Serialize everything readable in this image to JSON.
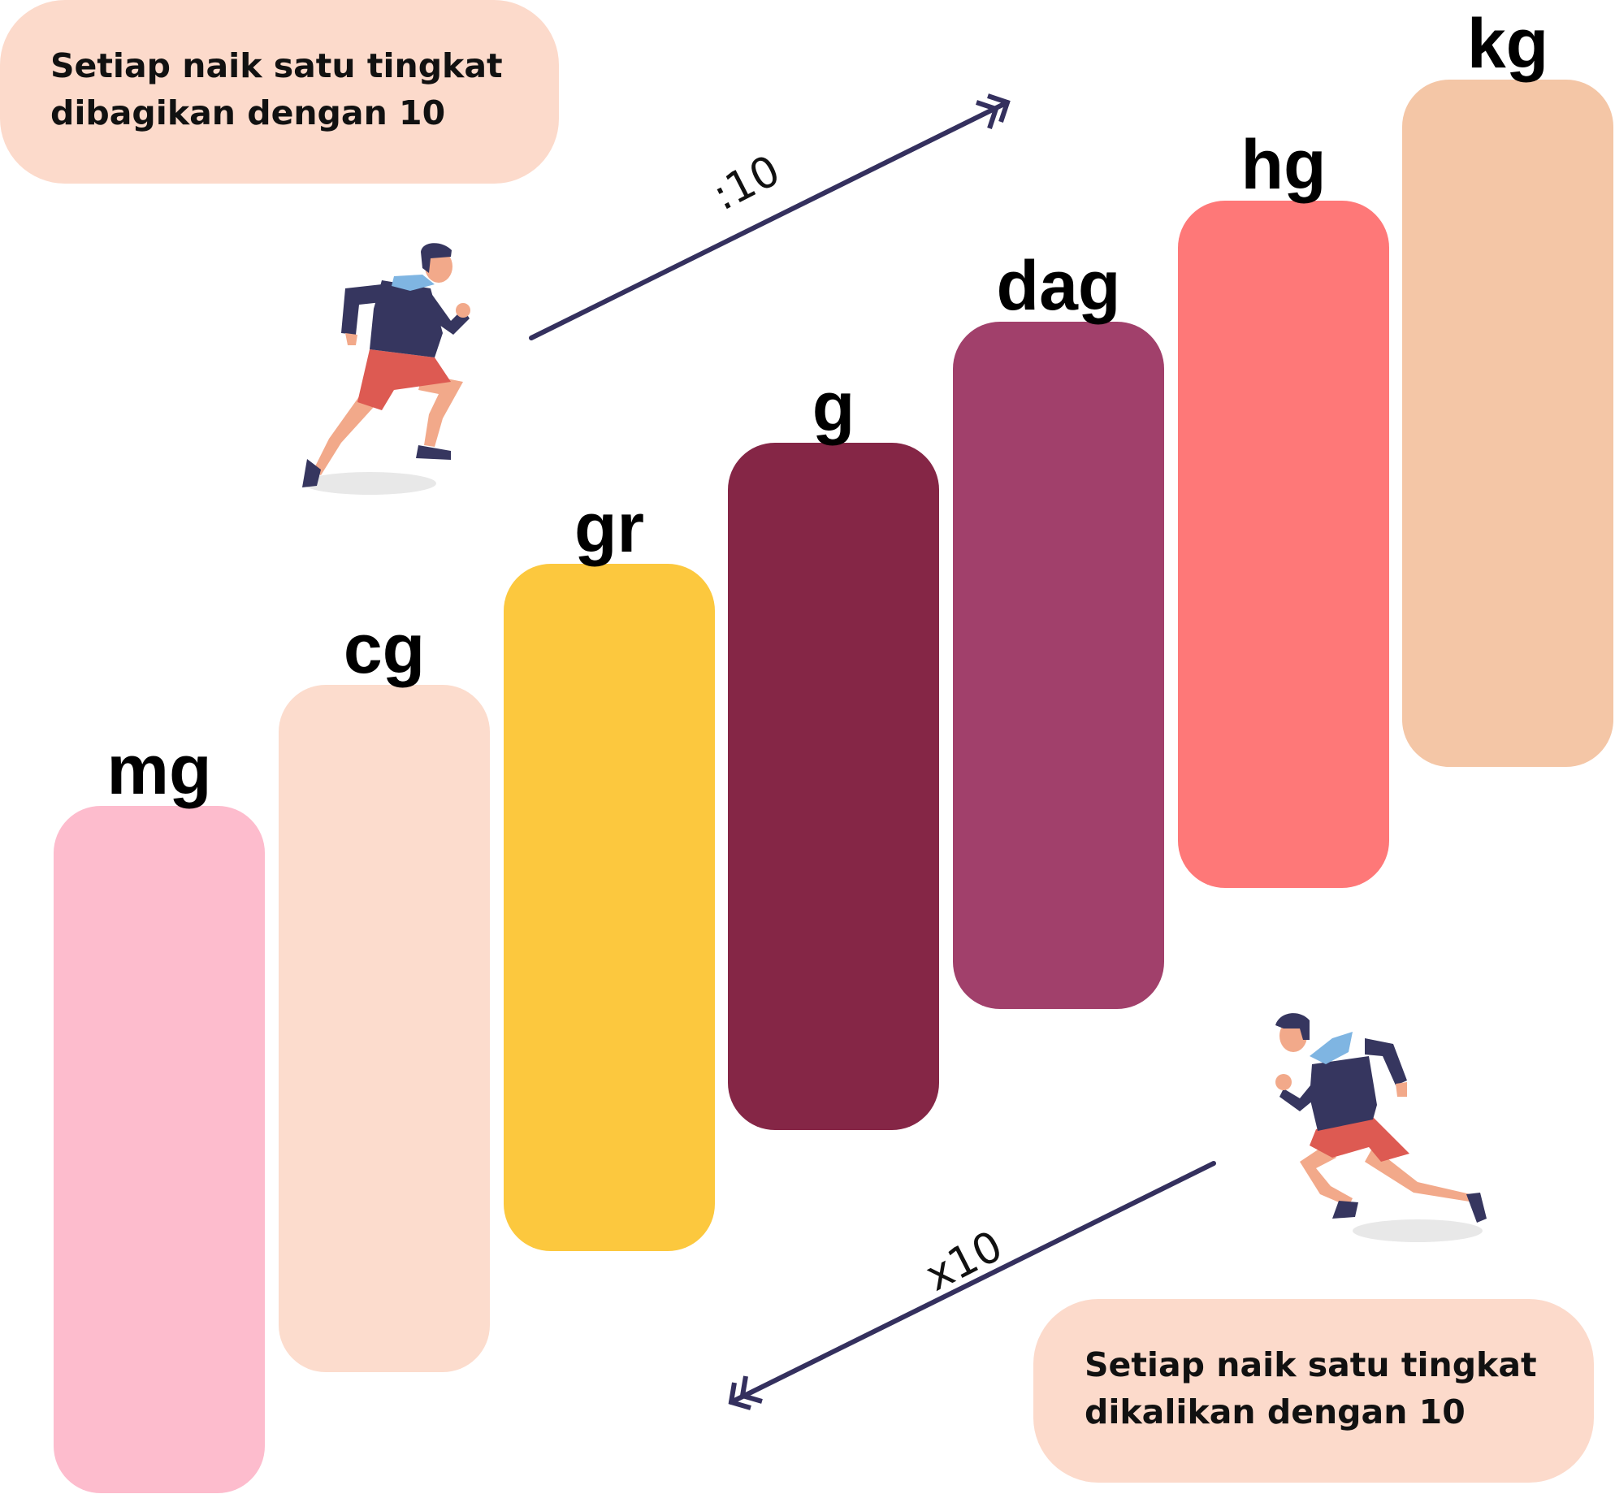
{
  "units": [
    {
      "label": "mg",
      "color": "#fdbccd"
    },
    {
      "label": "cg",
      "color": "#fcdccd"
    },
    {
      "label": "gr",
      "color": "#fcc83e"
    },
    {
      "label": "g",
      "color": "#852646"
    },
    {
      "label": "dag",
      "color": "#a1406b"
    },
    {
      "label": "hg",
      "color": "#fe7878"
    },
    {
      "label": "kg",
      "color": "#f4c6a6"
    }
  ],
  "notes": {
    "divide": {
      "line1": "Setiap naik satu tingkat",
      "line2": "dibagikan dengan 10"
    },
    "multiply": {
      "line1": "Setiap naik satu tingkat",
      "line2": "dikalikan dengan 10"
    }
  },
  "operators": {
    "divide": ":10",
    "multiply": "x10"
  },
  "colors": {
    "arrow": "#34305e",
    "note_bg": "#fcdacb",
    "runner_jacket": "#36365f",
    "runner_shorts": "#dd5a52",
    "runner_skin": "#f2a98a",
    "runner_hood": "#7fb5e2"
  },
  "icons": {
    "runner": "runner-icon",
    "arrow": "double-arrow-icon"
  }
}
